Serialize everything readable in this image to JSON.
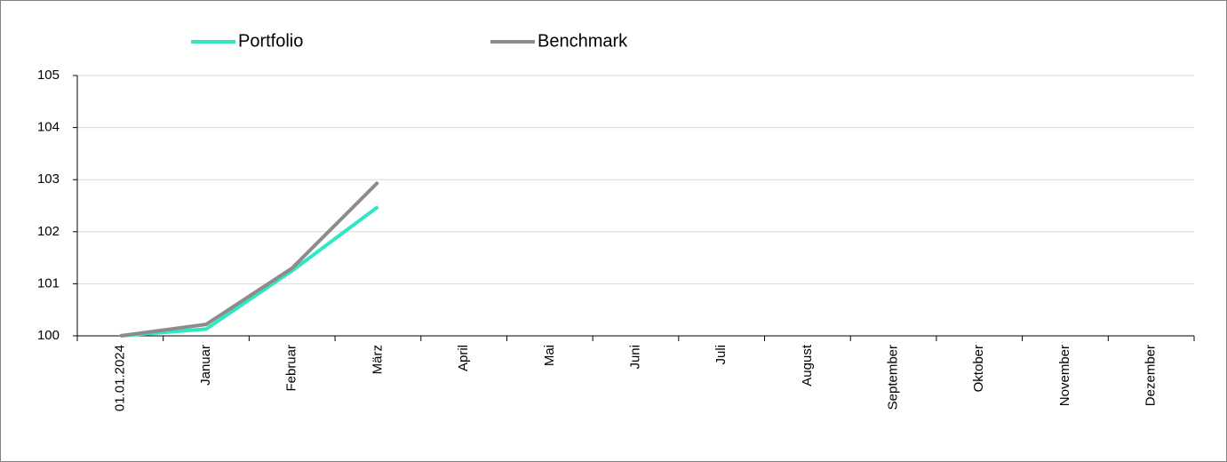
{
  "chart_data": {
    "type": "line",
    "categories": [
      "01.01.2024",
      "Januar",
      "Februar",
      "März",
      "April",
      "Mai",
      "Juni",
      "Juli",
      "August",
      "September",
      "Oktober",
      "November",
      "Dezember"
    ],
    "series": [
      {
        "name": "Portfolio",
        "color": "#2ee8c4",
        "values": [
          100,
          100.13,
          101.25,
          102.48,
          null,
          null,
          null,
          null,
          null,
          null,
          null,
          null,
          null
        ]
      },
      {
        "name": "Benchmark",
        "color": "#8c8c8c",
        "values": [
          100,
          100.22,
          101.3,
          102.95,
          null,
          null,
          null,
          null,
          null,
          null,
          null,
          null,
          null
        ]
      }
    ],
    "ylim": [
      100,
      105
    ],
    "yticks": [
      100,
      101,
      102,
      103,
      104,
      105
    ],
    "grid": true,
    "legend": "top"
  }
}
